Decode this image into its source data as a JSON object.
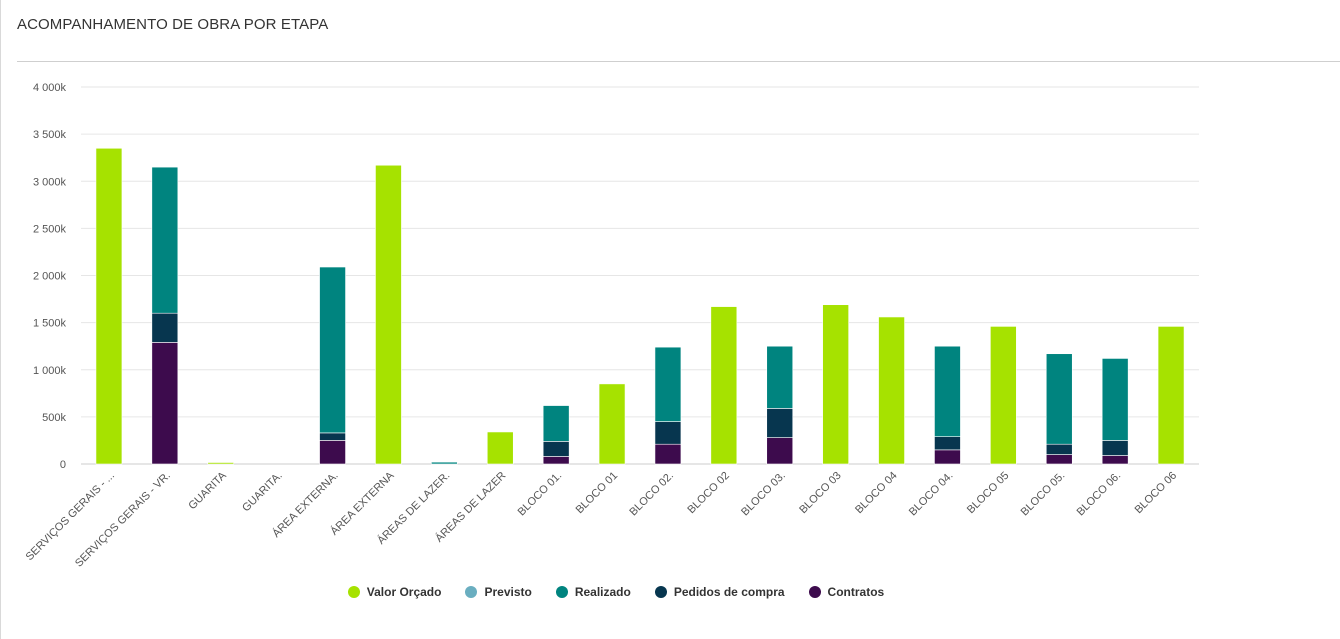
{
  "page": {
    "title": "ACOMPANHAMENTO DE OBRA POR ETAPA"
  },
  "colors": {
    "valor_orcado": "#a6e200",
    "previsto": "#6aaec0",
    "realizado": "#00847f",
    "pedidos": "#07364f",
    "contratos": "#3d0b4d",
    "grid": "#e6e6e6",
    "axis_text": "#555555"
  },
  "chart_data": {
    "type": "bar",
    "title": "ACOMPANHAMENTO DE OBRA POR ETAPA",
    "xlabel": "",
    "ylabel": "",
    "ylim": [
      0,
      4000
    ],
    "yticks": [
      0,
      500,
      1000,
      1500,
      2000,
      2500,
      3000,
      3500,
      4000
    ],
    "ytick_labels": [
      "0",
      "500k",
      "1 000k",
      "1 500k",
      "2 000k",
      "2 500k",
      "3 000k",
      "3 500k",
      "4 000k"
    ],
    "grid": true,
    "legend_position": "bottom-center",
    "categories": [
      "SERVIÇOS GERAIS - ...",
      "SERVIÇOS GERAIS - VR.",
      "GUARITA",
      "GUARITA.",
      "ÁREA EXTERNA.",
      "ÁREA EXTERNA",
      "ÁREAS DE LAZER.",
      "ÁREAS DE LAZER",
      "BLOCO 01.",
      "BLOCO 01",
      "BLOCO 02.",
      "BLOCO 02",
      "BLOCO 03.",
      "BLOCO 03",
      "BLOCO 04",
      "BLOCO 04.",
      "BLOCO 05",
      "BLOCO 05.",
      "BLOCO 06.",
      "BLOCO 06"
    ],
    "series": [
      {
        "name": "Valor Orçado",
        "key": "valor_orcado",
        "values": [
          3350,
          0,
          15,
          0,
          0,
          3170,
          0,
          340,
          0,
          850,
          0,
          1670,
          0,
          1690,
          1560,
          0,
          1460,
          0,
          0,
          1460
        ]
      },
      {
        "name": "Previsto",
        "key": "previsto",
        "values": [
          0,
          0,
          0,
          0,
          0,
          0,
          0,
          0,
          0,
          0,
          0,
          0,
          0,
          0,
          0,
          0,
          0,
          0,
          0,
          0
        ]
      },
      {
        "name": "Realizado",
        "key": "realizado",
        "values": [
          0,
          1550,
          0,
          0,
          1760,
          0,
          20,
          0,
          380,
          0,
          790,
          0,
          660,
          0,
          0,
          960,
          0,
          960,
          870,
          0
        ]
      },
      {
        "name": "Pedidos de compra",
        "key": "pedidos",
        "values": [
          0,
          310,
          0,
          0,
          80,
          0,
          0,
          0,
          160,
          0,
          240,
          0,
          310,
          0,
          0,
          140,
          0,
          110,
          160,
          0
        ]
      },
      {
        "name": "Contratos",
        "key": "contratos",
        "values": [
          0,
          1290,
          0,
          0,
          250,
          0,
          0,
          0,
          80,
          0,
          210,
          0,
          280,
          0,
          0,
          150,
          0,
          100,
          90,
          0
        ]
      }
    ],
    "legend": [
      "Valor Orçado",
      "Previsto",
      "Realizado",
      "Pedidos de compra",
      "Contratos"
    ]
  }
}
